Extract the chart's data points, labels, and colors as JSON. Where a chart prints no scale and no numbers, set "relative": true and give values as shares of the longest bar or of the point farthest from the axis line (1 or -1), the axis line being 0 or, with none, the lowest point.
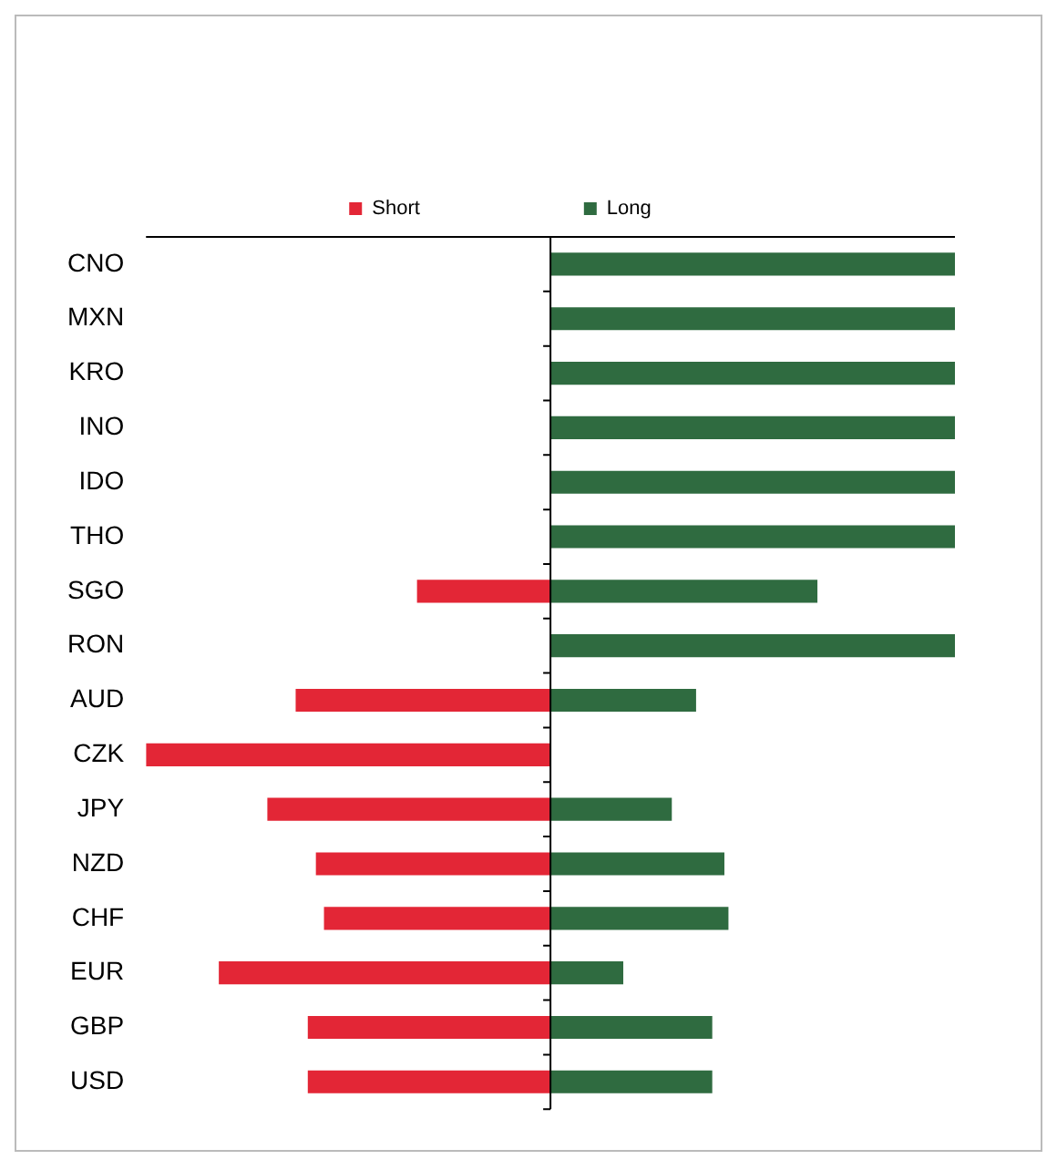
{
  "chart_data": {
    "type": "bar",
    "orientation": "horizontal",
    "stacked": true,
    "relative": true,
    "legend": "top",
    "categories": [
      "CNO",
      "MXN",
      "KRO",
      "INO",
      "IDO",
      "THO",
      "SGO",
      "RON",
      "AUD",
      "CZK",
      "JPY",
      "NZD",
      "CHF",
      "EUR",
      "GBP",
      "USD"
    ],
    "series": [
      {
        "name": "Short",
        "color": "#e32636",
        "values": [
          null,
          null,
          null,
          null,
          null,
          null,
          -0.33,
          null,
          -0.63,
          -1,
          -0.7,
          -0.58,
          -0.56,
          -0.82,
          -0.6,
          -0.6
        ]
      },
      {
        "name": "Long",
        "color": "#2f6b40",
        "values": [
          1,
          1,
          1,
          1,
          1,
          1,
          0.66,
          1,
          0.36,
          null,
          0.3,
          0.43,
          0.44,
          0.18,
          0.4,
          0.4
        ]
      }
    ]
  }
}
